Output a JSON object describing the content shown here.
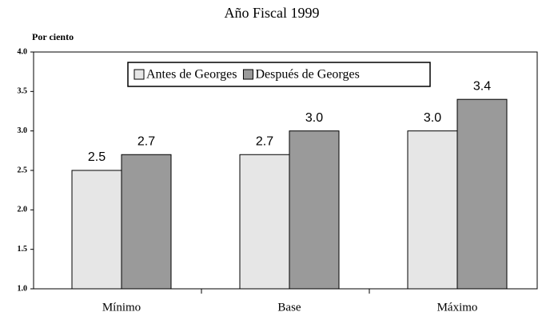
{
  "chart_data": {
    "type": "bar",
    "title": "Año Fiscal 1999",
    "y_label": "Por ciento",
    "categories": [
      "Mínimo",
      "Base",
      "Máximo"
    ],
    "series": [
      {
        "name": "Antes de Georges",
        "color": "#e6e6e6",
        "values": [
          2.5,
          2.7,
          3.0
        ],
        "value_labels": [
          "2.5",
          "2.7",
          "3.0"
        ]
      },
      {
        "name": "Después de Georges",
        "color": "#9a9a9a",
        "values": [
          2.7,
          3.0,
          3.4
        ],
        "value_labels": [
          "2.7",
          "3.0",
          "3.4"
        ]
      }
    ],
    "ylim": [
      1.0,
      4.0
    ],
    "yticks": [
      {
        "value": 1.0,
        "label": "1.0"
      },
      {
        "value": 1.5,
        "label": "1.5"
      },
      {
        "value": 2.0,
        "label": "2.0"
      },
      {
        "value": 2.5,
        "label": "2.5"
      },
      {
        "value": 3.0,
        "label": "3.0"
      },
      {
        "value": 3.5,
        "label": "3.5"
      },
      {
        "value": 4.0,
        "label": "4.0"
      }
    ],
    "legend": "top"
  }
}
